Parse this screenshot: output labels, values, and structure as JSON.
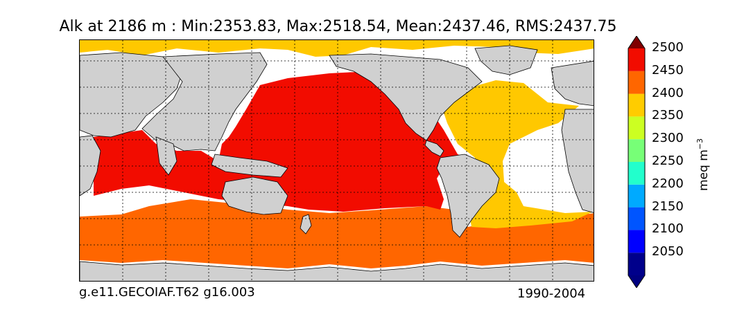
{
  "title": "Alk at 2186 m : Min:2353.83, Max:2518.54, Mean:2437.46, RMS:2437.75",
  "footer": {
    "case": "g.e11.GECOIAF.T62 g16.003",
    "period": "1990-2004"
  },
  "colorbar": {
    "label": "meq m",
    "label_exponent": "−3",
    "ticks": [
      "2050",
      "2100",
      "2150",
      "2200",
      "2250",
      "2300",
      "2350",
      "2400",
      "2450",
      "2500"
    ],
    "bins": [
      {
        "lo": null,
        "hi": 2000,
        "color": "#000080"
      },
      {
        "lo": 2000,
        "hi": 2050,
        "color": "#00008b"
      },
      {
        "lo": 2050,
        "hi": 2100,
        "color": "#0000ff"
      },
      {
        "lo": 2100,
        "hi": 2150,
        "color": "#0055ff"
      },
      {
        "lo": 2150,
        "hi": 2200,
        "color": "#00aaff"
      },
      {
        "lo": 2200,
        "hi": 2250,
        "color": "#22ffcc"
      },
      {
        "lo": 2250,
        "hi": 2300,
        "color": "#77ff77"
      },
      {
        "lo": 2300,
        "hi": 2350,
        "color": "#ccff22"
      },
      {
        "lo": 2350,
        "hi": 2400,
        "color": "#ffcc00"
      },
      {
        "lo": 2400,
        "hi": 2450,
        "color": "#ff6600"
      },
      {
        "lo": 2450,
        "hi": 2500,
        "color": "#f20c00"
      },
      {
        "lo": 2500,
        "hi": null,
        "color": "#800000"
      }
    ]
  },
  "map": {
    "land_color": "#d0d0d0",
    "ice_color": "#ffffff",
    "gridlines": "dotted",
    "region_colors": {
      "pacific_indian": "#f20c00",
      "atlantic": "#ffc800",
      "southern": "#ff6600",
      "arctic": "#ffc800"
    }
  }
}
